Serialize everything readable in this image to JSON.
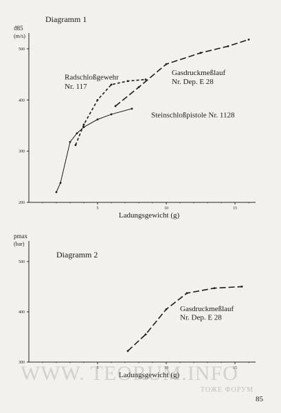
{
  "page_number": "85",
  "watermark": {
    "text": "WWW. TEORUM.INFO",
    "subtext": "ТОЖЕ ФОРУМ"
  },
  "chart_data": [
    {
      "type": "line",
      "title": "Diagramm 1",
      "ylabel_symbol": "ϑ85",
      "ylabel_unit": "(m/s)",
      "xlabel": "Ladungsgewicht (g)",
      "xlim": [
        0,
        16.5
      ],
      "ylim": [
        200,
        520
      ],
      "xticks": [
        5,
        10,
        15
      ],
      "xtick_labels": [
        "5",
        "10",
        "15"
      ],
      "yticks": [
        200,
        300,
        400,
        500
      ],
      "ytick_labels": [
        "200",
        "300",
        "400",
        "500"
      ],
      "series": [
        {
          "name": "Steinschloßpistole Nr. 1128",
          "style": "solid",
          "x": [
            2,
            2.3,
            3,
            3.5,
            4,
            5,
            6,
            7.5
          ],
          "y": [
            220,
            238,
            318,
            335,
            347,
            362,
            372,
            383
          ]
        },
        {
          "name": "Radschloßgewehr Nr. 117",
          "style": "dashed",
          "x": [
            3.4,
            4,
            5,
            6,
            7.2,
            8.5
          ],
          "y": [
            312,
            352,
            400,
            430,
            437,
            440
          ]
        },
        {
          "name": "Gasdruckmeßlauf Nr. Dep. E 28",
          "style": "long-dashed",
          "x": [
            6.3,
            8,
            10,
            12.5,
            14.5,
            16
          ],
          "y": [
            388,
            425,
            470,
            492,
            505,
            518
          ]
        }
      ],
      "annotations": [
        {
          "text": "Radschloßgewehr",
          "x": 2.6,
          "y": 440
        },
        {
          "text": "Nr. 117",
          "x": 2.6,
          "y": 422
        },
        {
          "text": "Gasdruckmeßlauf",
          "x": 10.4,
          "y": 449
        },
        {
          "text": "Nr. Dep. E 28",
          "x": 10.4,
          "y": 431
        },
        {
          "text": "Steinschloßpistole Nr. 1128",
          "x": 8.9,
          "y": 366
        }
      ]
    },
    {
      "type": "line",
      "title": "Diagramm 2",
      "ylabel_symbol": "pmax",
      "ylabel_unit": "(bar)",
      "xlabel": "Ladungsgewicht (g)",
      "xlim": [
        0,
        16.5
      ],
      "ylim": [
        300,
        530
      ],
      "xticks": [
        5,
        10,
        15
      ],
      "xtick_labels": [
        "5",
        "10",
        "15"
      ],
      "yticks": [
        300,
        400,
        500
      ],
      "ytick_labels": [
        "300",
        "400",
        "500"
      ],
      "series": [
        {
          "name": "Gasdruckmeßlauf Nr. Dep. E 28",
          "style": "long-dashed",
          "x": [
            7.2,
            8.5,
            10,
            11.5,
            13.5,
            15.5
          ],
          "y": [
            322,
            355,
            405,
            437,
            447,
            450
          ]
        }
      ],
      "annotations": [
        {
          "text": "Gasdruckmeßlauf",
          "x": 11,
          "y": 401
        },
        {
          "text": "Nr. Dep. E 28",
          "x": 11,
          "y": 384
        }
      ]
    }
  ]
}
